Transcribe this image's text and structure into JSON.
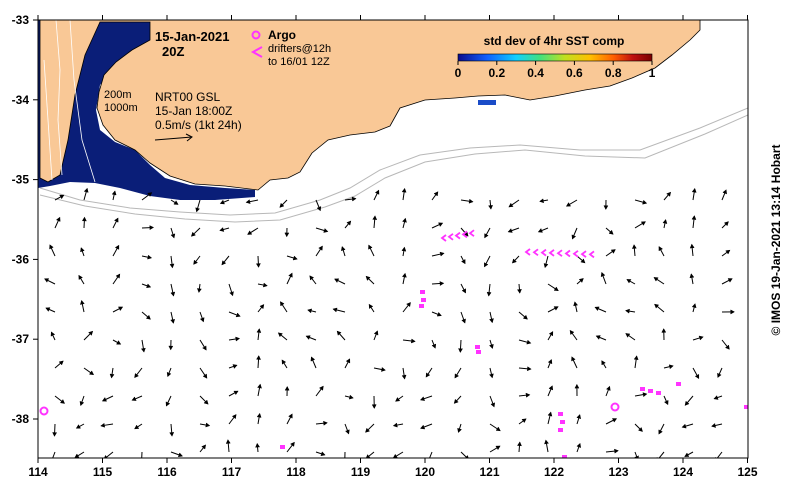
{
  "map": {
    "title_date": "15-Jan-2021",
    "title_time": "20Z",
    "x_ticks": [
      "114",
      "115",
      "116",
      "117",
      "118",
      "119",
      "120",
      "121",
      "122",
      "123",
      "124",
      "125"
    ],
    "y_ticks": [
      "-33",
      "-34",
      "-35",
      "-36",
      "-37",
      "-38"
    ],
    "land_color": "#f9c896",
    "ocean_color": "#ffffff",
    "sst_color": "#0a1e78"
  },
  "legend": {
    "argo_label": "Argo",
    "drifters_line1": "drifters@12h",
    "drifters_line2": "to 16/01 12Z",
    "argo_color": "#ff33ff",
    "colorbar_title": "std dev of 4hr SST comp",
    "colorbar_ticks": [
      "0",
      "0.2",
      "0.4",
      "0.6",
      "0.8",
      "1"
    ],
    "colorbar_colors": [
      "#0b0b8c",
      "#1060ff",
      "#10d0ff",
      "#40e080",
      "#c0e020",
      "#ffc000",
      "#ff6000",
      "#c01010",
      "#7a0000"
    ]
  },
  "annotations": {
    "isobath_200": "200m",
    "isobath_1000": "1000m",
    "model_name": "NRT00 GSL",
    "model_time": "15-Jan 18:00Z",
    "scale_label": "0.5m/s (1kt 24h)"
  },
  "credit": "© IMOS 19-Jan-2021 13:14 Hobart"
}
